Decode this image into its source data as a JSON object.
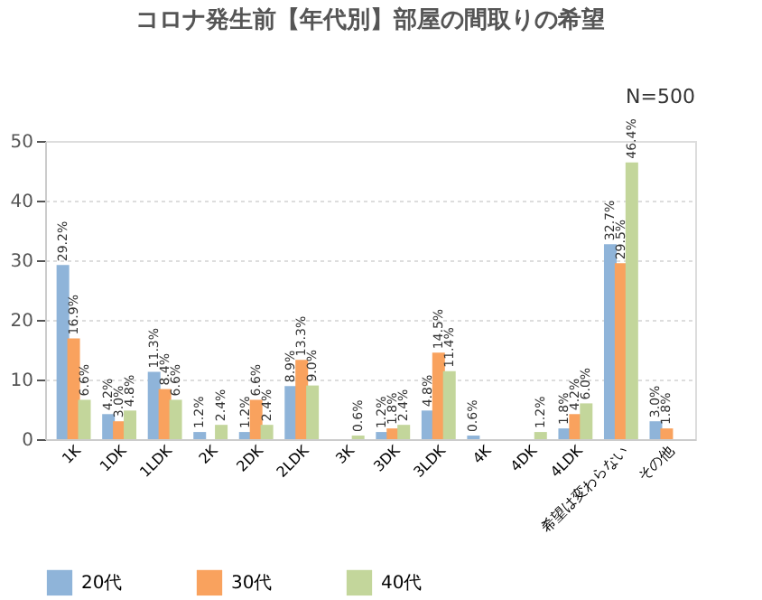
{
  "chart_data": {
    "type": "bar",
    "title": "コロナ発生前【年代別】部屋の間取りの希望",
    "annotations": [
      "N=500"
    ],
    "categories": [
      "1K",
      "1DK",
      "1LDK",
      "2K",
      "2DK",
      "2LDK",
      "3K",
      "3DK",
      "3LDK",
      "4K",
      "4DK",
      "4LDK",
      "希望は変わらない",
      "その他"
    ],
    "series": [
      {
        "name": "20代",
        "color": "#8fb4d9",
        "values": [
          29.2,
          4.2,
          11.3,
          1.2,
          1.2,
          8.9,
          0,
          1.2,
          4.8,
          0.6,
          0,
          1.8,
          32.7,
          3.0
        ],
        "value_labels": [
          "29.2%",
          "4.2%",
          "11.3%",
          "1.2%",
          "1.2%",
          "8.9%",
          null,
          "1.2%",
          "4.8%",
          "0.6%",
          null,
          "1.8%",
          "32.7%",
          "3.0%"
        ]
      },
      {
        "name": "30代",
        "color": "#f9a25e",
        "values": [
          16.9,
          3.0,
          8.4,
          0,
          6.6,
          13.3,
          0,
          1.8,
          14.5,
          0,
          0,
          4.2,
          29.5,
          1.8
        ],
        "value_labels": [
          "16.9%",
          "3.0%",
          "8.4%",
          null,
          "6.6%",
          "13.3%",
          null,
          "1.8%",
          "14.5%",
          null,
          null,
          "4.2%",
          "29.5%",
          "1.8%"
        ]
      },
      {
        "name": "40代",
        "color": "#c3d69b",
        "values": [
          6.6,
          4.8,
          6.6,
          2.4,
          2.4,
          9.0,
          0.6,
          2.4,
          11.4,
          0,
          1.2,
          6.0,
          46.4,
          0
        ],
        "value_labels": [
          "6.6%",
          "4.8%",
          "6.6%",
          "2.4%",
          "2.4%",
          "9.0%",
          "0.6%",
          "2.4%",
          "11.4%",
          null,
          "1.2%",
          "6.0%",
          "46.4%",
          null
        ]
      }
    ],
    "ylim": [
      0,
      50
    ],
    "yticks": [
      0,
      10,
      20,
      30,
      40,
      50
    ],
    "grid": "y",
    "legend": "bottom"
  }
}
